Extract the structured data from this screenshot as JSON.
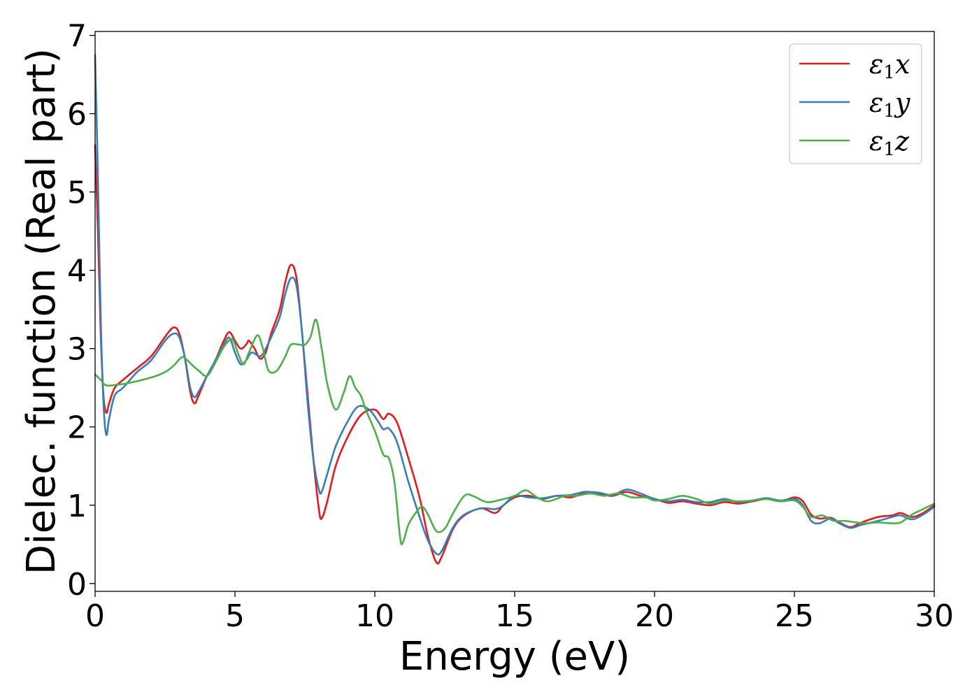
{
  "chart_data": {
    "type": "line",
    "xlabel": "Energy (eV)",
    "ylabel": "Dielec. function (Real part)",
    "xlim": [
      0,
      30
    ],
    "ylim": [
      -0.1,
      7.05
    ],
    "xticks": [
      0,
      5,
      10,
      15,
      20,
      25,
      30
    ],
    "yticks": [
      0,
      1,
      2,
      3,
      4,
      5,
      6,
      7
    ],
    "grid": false,
    "legend_position": "top-right",
    "series": [
      {
        "name": "ε₁x",
        "legend_main": "ε",
        "legend_sub": "1",
        "legend_suffix": "x",
        "color": "#e41a1c",
        "points": [
          [
            0,
            5.6
          ],
          [
            0.1,
            4.5
          ],
          [
            0.2,
            3.2
          ],
          [
            0.3,
            2.4
          ],
          [
            0.4,
            2.18
          ],
          [
            0.5,
            2.3
          ],
          [
            0.7,
            2.5
          ],
          [
            1,
            2.6
          ],
          [
            1.5,
            2.75
          ],
          [
            2,
            2.9
          ],
          [
            2.5,
            3.15
          ],
          [
            2.8,
            3.27
          ],
          [
            3.0,
            3.2
          ],
          [
            3.2,
            2.9
          ],
          [
            3.4,
            2.45
          ],
          [
            3.55,
            2.3
          ],
          [
            3.7,
            2.4
          ],
          [
            4.0,
            2.65
          ],
          [
            4.3,
            2.85
          ],
          [
            4.6,
            3.1
          ],
          [
            4.8,
            3.21
          ],
          [
            5.0,
            3.1
          ],
          [
            5.2,
            3.0
          ],
          [
            5.4,
            3.05
          ],
          [
            5.5,
            3.1
          ],
          [
            5.7,
            3.0
          ],
          [
            5.9,
            2.87
          ],
          [
            6.1,
            2.95
          ],
          [
            6.3,
            3.2
          ],
          [
            6.6,
            3.5
          ],
          [
            6.8,
            3.85
          ],
          [
            7.0,
            4.07
          ],
          [
            7.2,
            3.9
          ],
          [
            7.4,
            3.2
          ],
          [
            7.6,
            2.4
          ],
          [
            7.8,
            1.6
          ],
          [
            8.0,
            0.95
          ],
          [
            8.1,
            0.83
          ],
          [
            8.3,
            1.05
          ],
          [
            8.6,
            1.5
          ],
          [
            9.0,
            1.85
          ],
          [
            9.5,
            2.15
          ],
          [
            10.0,
            2.22
          ],
          [
            10.3,
            2.1
          ],
          [
            10.5,
            2.17
          ],
          [
            10.8,
            2.05
          ],
          [
            11.2,
            1.6
          ],
          [
            11.6,
            1.1
          ],
          [
            11.9,
            0.6
          ],
          [
            12.2,
            0.27
          ],
          [
            12.4,
            0.35
          ],
          [
            12.8,
            0.7
          ],
          [
            13.2,
            0.87
          ],
          [
            13.8,
            0.96
          ],
          [
            14.3,
            0.9
          ],
          [
            14.6,
            1.0
          ],
          [
            15.0,
            1.1
          ],
          [
            15.5,
            1.12
          ],
          [
            16.0,
            1.08
          ],
          [
            16.5,
            1.12
          ],
          [
            17.0,
            1.1
          ],
          [
            17.5,
            1.15
          ],
          [
            18.0,
            1.14
          ],
          [
            18.5,
            1.12
          ],
          [
            19.0,
            1.17
          ],
          [
            19.5,
            1.12
          ],
          [
            20.0,
            1.08
          ],
          [
            20.5,
            1.03
          ],
          [
            21.0,
            1.05
          ],
          [
            21.5,
            1.02
          ],
          [
            22.0,
            1.0
          ],
          [
            22.5,
            1.04
          ],
          [
            23.0,
            1.02
          ],
          [
            23.5,
            1.05
          ],
          [
            24.0,
            1.08
          ],
          [
            24.5,
            1.05
          ],
          [
            25.0,
            1.1
          ],
          [
            25.3,
            1.05
          ],
          [
            25.6,
            0.88
          ],
          [
            25.9,
            0.83
          ],
          [
            26.3,
            0.84
          ],
          [
            26.6,
            0.78
          ],
          [
            27.0,
            0.72
          ],
          [
            27.4,
            0.78
          ],
          [
            28.0,
            0.85
          ],
          [
            28.5,
            0.87
          ],
          [
            28.8,
            0.9
          ],
          [
            29.2,
            0.85
          ],
          [
            29.6,
            0.9
          ],
          [
            30.0,
            1.0
          ]
        ]
      },
      {
        "name": "ε₁y",
        "legend_main": "ε",
        "legend_sub": "1",
        "legend_suffix": "y",
        "color": "#377eb8",
        "points": [
          [
            0,
            6.75
          ],
          [
            0.1,
            5.2
          ],
          [
            0.2,
            3.4
          ],
          [
            0.3,
            2.3
          ],
          [
            0.4,
            1.9
          ],
          [
            0.5,
            2.1
          ],
          [
            0.7,
            2.4
          ],
          [
            1,
            2.5
          ],
          [
            1.5,
            2.7
          ],
          [
            2,
            2.85
          ],
          [
            2.5,
            3.1
          ],
          [
            2.8,
            3.19
          ],
          [
            3.0,
            3.15
          ],
          [
            3.2,
            2.9
          ],
          [
            3.4,
            2.5
          ],
          [
            3.55,
            2.38
          ],
          [
            3.7,
            2.45
          ],
          [
            4.0,
            2.65
          ],
          [
            4.3,
            2.85
          ],
          [
            4.6,
            3.05
          ],
          [
            4.8,
            3.14
          ],
          [
            5.0,
            2.95
          ],
          [
            5.2,
            2.8
          ],
          [
            5.4,
            2.85
          ],
          [
            5.6,
            2.95
          ],
          [
            5.9,
            2.9
          ],
          [
            6.1,
            3.0
          ],
          [
            6.3,
            3.15
          ],
          [
            6.6,
            3.4
          ],
          [
            6.8,
            3.7
          ],
          [
            7.0,
            3.9
          ],
          [
            7.2,
            3.8
          ],
          [
            7.4,
            3.2
          ],
          [
            7.6,
            2.3
          ],
          [
            7.8,
            1.6
          ],
          [
            8.0,
            1.2
          ],
          [
            8.1,
            1.17
          ],
          [
            8.3,
            1.4
          ],
          [
            8.6,
            1.75
          ],
          [
            9.0,
            2.05
          ],
          [
            9.4,
            2.26
          ],
          [
            9.8,
            2.22
          ],
          [
            10.1,
            2.08
          ],
          [
            10.3,
            1.97
          ],
          [
            10.5,
            1.98
          ],
          [
            10.8,
            1.8
          ],
          [
            11.2,
            1.3
          ],
          [
            11.6,
            0.85
          ],
          [
            11.9,
            0.55
          ],
          [
            12.2,
            0.38
          ],
          [
            12.4,
            0.42
          ],
          [
            12.8,
            0.72
          ],
          [
            13.2,
            0.88
          ],
          [
            13.8,
            0.96
          ],
          [
            14.3,
            0.95
          ],
          [
            14.6,
            1.0
          ],
          [
            15.0,
            1.12
          ],
          [
            15.5,
            1.1
          ],
          [
            16.0,
            1.09
          ],
          [
            16.5,
            1.12
          ],
          [
            17.0,
            1.13
          ],
          [
            17.5,
            1.17
          ],
          [
            18.0,
            1.16
          ],
          [
            18.5,
            1.13
          ],
          [
            19.0,
            1.2
          ],
          [
            19.5,
            1.15
          ],
          [
            20.0,
            1.08
          ],
          [
            20.5,
            1.05
          ],
          [
            21.0,
            1.07
          ],
          [
            21.5,
            1.04
          ],
          [
            22.0,
            1.04
          ],
          [
            22.5,
            1.08
          ],
          [
            23.0,
            1.04
          ],
          [
            23.5,
            1.06
          ],
          [
            24.0,
            1.09
          ],
          [
            24.5,
            1.06
          ],
          [
            25.0,
            1.08
          ],
          [
            25.3,
            1.0
          ],
          [
            25.6,
            0.8
          ],
          [
            25.9,
            0.77
          ],
          [
            26.3,
            0.83
          ],
          [
            26.6,
            0.77
          ],
          [
            27.0,
            0.71
          ],
          [
            27.4,
            0.75
          ],
          [
            28.0,
            0.8
          ],
          [
            28.5,
            0.85
          ],
          [
            28.8,
            0.87
          ],
          [
            29.2,
            0.82
          ],
          [
            29.6,
            0.88
          ],
          [
            30.0,
            0.98
          ]
        ]
      },
      {
        "name": "ε₁z",
        "legend_main": "ε",
        "legend_sub": "1",
        "legend_suffix": "z",
        "color": "#4daf4a",
        "points": [
          [
            0,
            2.67
          ],
          [
            0.2,
            2.6
          ],
          [
            0.4,
            2.53
          ],
          [
            0.8,
            2.54
          ],
          [
            1.2,
            2.56
          ],
          [
            2.0,
            2.63
          ],
          [
            2.5,
            2.7
          ],
          [
            2.8,
            2.78
          ],
          [
            3.1,
            2.89
          ],
          [
            3.3,
            2.85
          ],
          [
            3.5,
            2.78
          ],
          [
            3.7,
            2.72
          ],
          [
            4.0,
            2.65
          ],
          [
            4.3,
            2.82
          ],
          [
            4.6,
            3.02
          ],
          [
            4.9,
            3.12
          ],
          [
            5.1,
            2.95
          ],
          [
            5.3,
            2.8
          ],
          [
            5.5,
            2.95
          ],
          [
            5.8,
            3.17
          ],
          [
            6.0,
            3.0
          ],
          [
            6.2,
            2.72
          ],
          [
            6.5,
            2.72
          ],
          [
            6.8,
            2.9
          ],
          [
            7.0,
            3.05
          ],
          [
            7.3,
            3.05
          ],
          [
            7.5,
            3.05
          ],
          [
            7.7,
            3.15
          ],
          [
            7.9,
            3.37
          ],
          [
            8.1,
            3.0
          ],
          [
            8.3,
            2.55
          ],
          [
            8.6,
            2.22
          ],
          [
            8.9,
            2.45
          ],
          [
            9.1,
            2.65
          ],
          [
            9.3,
            2.5
          ],
          [
            9.5,
            2.4
          ],
          [
            9.7,
            2.2
          ],
          [
            10.0,
            1.95
          ],
          [
            10.3,
            1.65
          ],
          [
            10.5,
            1.6
          ],
          [
            10.7,
            1.3
          ],
          [
            10.9,
            0.6
          ],
          [
            11.0,
            0.52
          ],
          [
            11.2,
            0.75
          ],
          [
            11.5,
            0.92
          ],
          [
            11.7,
            0.98
          ],
          [
            11.9,
            0.88
          ],
          [
            12.2,
            0.67
          ],
          [
            12.5,
            0.7
          ],
          [
            12.8,
            0.9
          ],
          [
            13.2,
            1.12
          ],
          [
            13.5,
            1.12
          ],
          [
            14.0,
            1.04
          ],
          [
            14.5,
            1.07
          ],
          [
            15.0,
            1.12
          ],
          [
            15.4,
            1.19
          ],
          [
            15.8,
            1.1
          ],
          [
            16.2,
            1.05
          ],
          [
            16.8,
            1.12
          ],
          [
            17.2,
            1.12
          ],
          [
            17.7,
            1.15
          ],
          [
            18.2,
            1.12
          ],
          [
            18.7,
            1.15
          ],
          [
            19.2,
            1.1
          ],
          [
            19.7,
            1.1
          ],
          [
            20.0,
            1.06
          ],
          [
            20.5,
            1.08
          ],
          [
            21.0,
            1.12
          ],
          [
            21.5,
            1.08
          ],
          [
            22.0,
            1.02
          ],
          [
            22.5,
            1.06
          ],
          [
            23.0,
            1.05
          ],
          [
            23.5,
            1.06
          ],
          [
            24.0,
            1.08
          ],
          [
            24.5,
            1.05
          ],
          [
            25.0,
            1.06
          ],
          [
            25.3,
            0.98
          ],
          [
            25.6,
            0.85
          ],
          [
            26.0,
            0.87
          ],
          [
            26.4,
            0.8
          ],
          [
            26.8,
            0.8
          ],
          [
            27.2,
            0.78
          ],
          [
            27.6,
            0.77
          ],
          [
            28.0,
            0.78
          ],
          [
            28.4,
            0.77
          ],
          [
            28.8,
            0.78
          ],
          [
            29.2,
            0.88
          ],
          [
            29.6,
            0.95
          ],
          [
            30.0,
            1.02
          ]
        ]
      }
    ]
  }
}
